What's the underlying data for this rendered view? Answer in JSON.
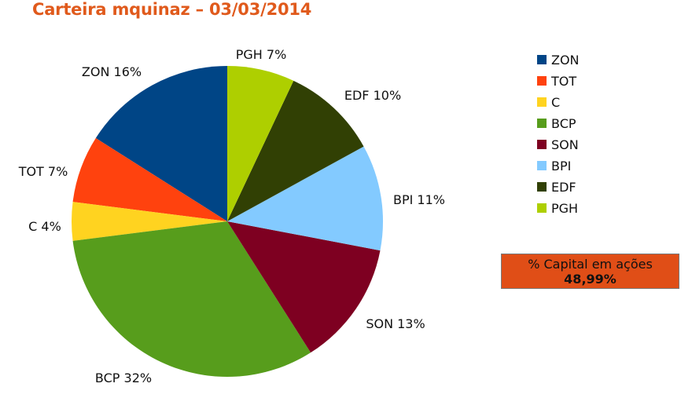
{
  "title": "Carteira mquinaz – 03/03/2014",
  "chart_data": {
    "type": "pie",
    "legend_position": "right",
    "slices": [
      {
        "name": "ZON",
        "value": 16,
        "label": "ZON 16%",
        "color": "#004586"
      },
      {
        "name": "TOT",
        "value": 7,
        "label": "TOT 7%",
        "color": "#ff420e"
      },
      {
        "name": "C",
        "value": 4,
        "label": "C 4%",
        "color": "#ffd320"
      },
      {
        "name": "BCP",
        "value": 32,
        "label": "BCP 32%",
        "color": "#579d1c"
      },
      {
        "name": "SON",
        "value": 13,
        "label": "SON 13%",
        "color": "#7e0021"
      },
      {
        "name": "BPI",
        "value": 11,
        "label": "BPI 11%",
        "color": "#83caff"
      },
      {
        "name": "EDF",
        "value": 10,
        "label": "EDF 10%",
        "color": "#314004"
      },
      {
        "name": "PGH",
        "value": 7,
        "label": "PGH 7%",
        "color": "#aecf00"
      }
    ]
  },
  "capital_box": {
    "label": "% Capital em ações",
    "value": "48,99%",
    "background": "#e04e17"
  }
}
